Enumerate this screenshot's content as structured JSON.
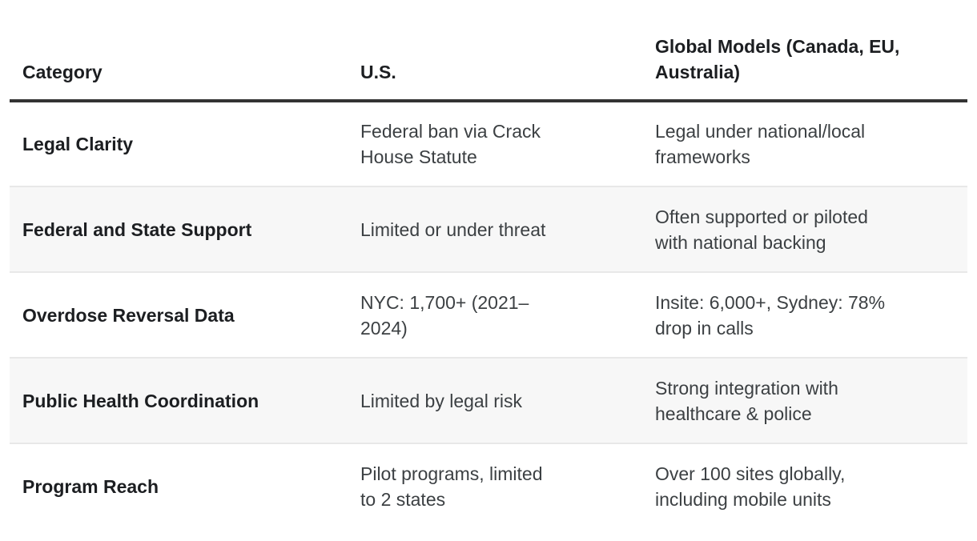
{
  "table": {
    "columns": [
      {
        "label": "Category"
      },
      {
        "label": "U.S."
      },
      {
        "label": "Global Models (Canada, EU, Australia)"
      }
    ],
    "rows": [
      {
        "category": "Legal Clarity",
        "us": "Federal ban via Crack House Statute",
        "global": "Legal under national/local frameworks"
      },
      {
        "category": "Federal and State Support",
        "us": "Limited or under threat",
        "global": "Often supported or piloted with national backing"
      },
      {
        "category": "Overdose Reversal Data",
        "us": "NYC: 1,700+ (2021–2024)",
        "global": "Insite: 6,000+, Sydney: 78% drop in calls"
      },
      {
        "category": "Public Health Coordination",
        "us": "Limited by legal risk",
        "global": "Strong integration with healthcare & police"
      },
      {
        "category": "Program Reach",
        "us": "Pilot programs, limited to 2 states",
        "global": "Over 100 sites globally, including mobile units"
      }
    ],
    "colors": {
      "header_border": "#333333",
      "row_stripe": "#f7f7f7",
      "row_divider": "#e8e8e8",
      "text_bold": "#1c1e21",
      "text_regular": "#3c4043"
    }
  }
}
